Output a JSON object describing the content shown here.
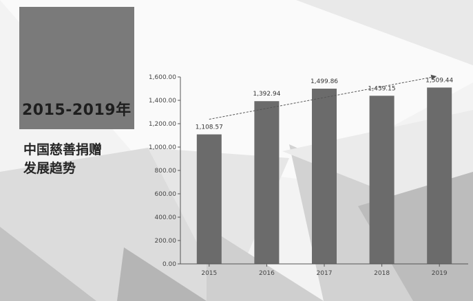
{
  "header": {
    "title": "2015-2019年",
    "subtitle_line1": "中国慈善捐赠",
    "subtitle_line2": "发展趋势"
  },
  "chart_data": {
    "type": "bar",
    "title": "2015-2019年 中国慈善捐赠发展趋势",
    "categories": [
      "2015",
      "2016",
      "2017",
      "2018",
      "2019"
    ],
    "series": [
      {
        "values": [
          1108.57,
          1392.94,
          1499.86,
          1439.15,
          1509.44
        ]
      }
    ],
    "data_labels": [
      "1,108.57",
      "1,392.94",
      "1,499.86",
      "1,439.15",
      "1,509.44"
    ],
    "y_ticks": [
      "0.00",
      "200.00",
      "400.00",
      "600.00",
      "800.00",
      "1,000.00",
      "1,200.00",
      "1,400.00",
      "1,600.00"
    ],
    "ylim": [
      0,
      1600
    ],
    "trend_arrow": true,
    "grid": false,
    "colors": {
      "bar": "#6b6b6b",
      "background": "#f3f3f3",
      "title_block": "#7a7a7a"
    }
  }
}
